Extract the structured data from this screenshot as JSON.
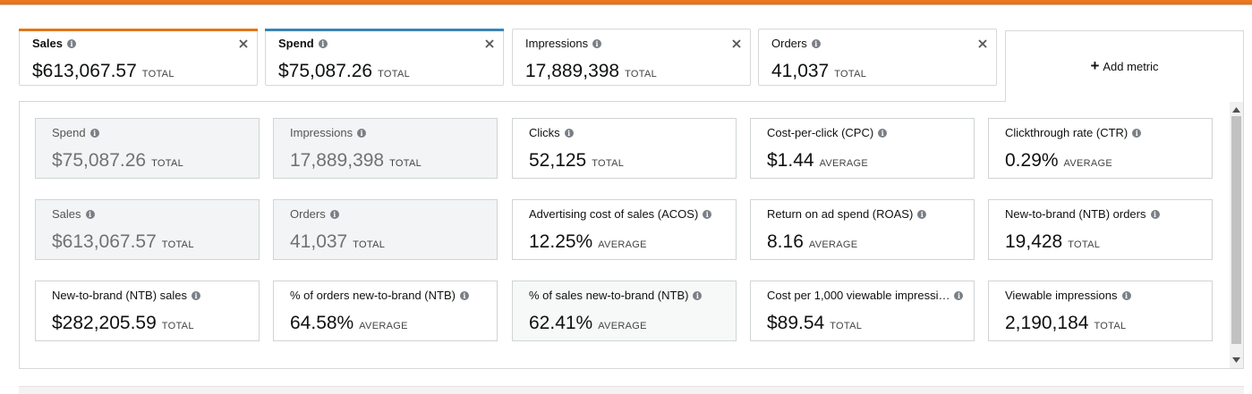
{
  "colors": {
    "top_bar": "#f07a1c",
    "sales_accent": "#e0761a",
    "spend_accent": "#3a86b4"
  },
  "metric_tabs": [
    {
      "label": "Sales",
      "value": "$613,067.57",
      "unit": "TOTAL",
      "selected": true,
      "accent": "#e0761a"
    },
    {
      "label": "Spend",
      "value": "$75,087.26",
      "unit": "TOTAL",
      "selected": true,
      "accent": "#3a86b4"
    },
    {
      "label": "Impressions",
      "value": "17,889,398",
      "unit": "TOTAL",
      "selected": false
    },
    {
      "label": "Orders",
      "value": "41,037",
      "unit": "TOTAL",
      "selected": false
    }
  ],
  "add_metric": {
    "label": "Add metric",
    "icon": "plus-icon"
  },
  "cards": [
    {
      "label": "Spend",
      "value": "$75,087.26",
      "unit": "TOTAL",
      "state": "dim"
    },
    {
      "label": "Impressions",
      "value": "17,889,398",
      "unit": "TOTAL",
      "state": "dim"
    },
    {
      "label": "Clicks",
      "value": "52,125",
      "unit": "TOTAL",
      "state": "normal"
    },
    {
      "label": "Cost-per-click (CPC)",
      "value": "$1.44",
      "unit": "AVERAGE",
      "state": "normal"
    },
    {
      "label": "Clickthrough rate (CTR)",
      "value": "0.29%",
      "unit": "AVERAGE",
      "state": "normal"
    },
    {
      "label": "Sales",
      "value": "$613,067.57",
      "unit": "TOTAL",
      "state": "dim"
    },
    {
      "label": "Orders",
      "value": "41,037",
      "unit": "TOTAL",
      "state": "dim"
    },
    {
      "label": "Advertising cost of sales (ACOS)",
      "value": "12.25%",
      "unit": "AVERAGE",
      "state": "normal"
    },
    {
      "label": "Return on ad spend (ROAS)",
      "value": "8.16",
      "unit": "AVERAGE",
      "state": "normal"
    },
    {
      "label": "New-to-brand (NTB) orders",
      "value": "19,428",
      "unit": "TOTAL",
      "state": "normal"
    },
    {
      "label": "New-to-brand (NTB) sales",
      "value": "$282,205.59",
      "unit": "TOTAL",
      "state": "normal"
    },
    {
      "label": "% of orders new-to-brand (NTB)",
      "value": "64.58%",
      "unit": "AVERAGE",
      "state": "normal"
    },
    {
      "label": "% of sales new-to-brand (NTB)",
      "value": "62.41%",
      "unit": "AVERAGE",
      "state": "hover"
    },
    {
      "label": "Cost per 1,000 viewable impressi…",
      "value": "$89.54",
      "unit": "TOTAL",
      "state": "normal"
    },
    {
      "label": "Viewable impressions",
      "value": "2,190,184",
      "unit": "TOTAL",
      "state": "normal"
    }
  ]
}
